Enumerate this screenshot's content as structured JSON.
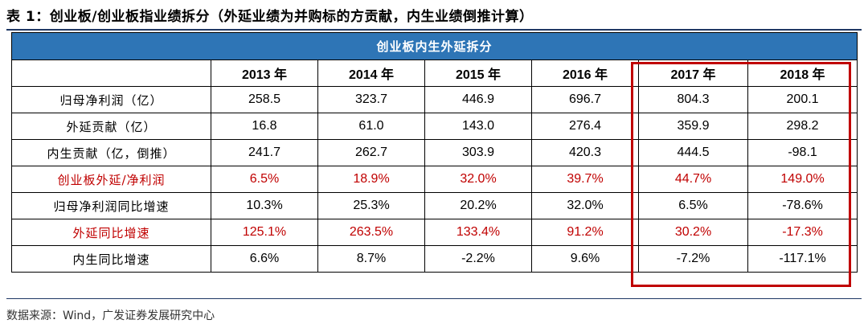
{
  "caption": "表 1：创业板/创业板指业绩拆分（外延业绩为并购标的方贡献，内生业绩倒推计算）",
  "table": {
    "banner": "创业板内生外延拆分",
    "years": [
      "2013 年",
      "2014 年",
      "2015 年",
      "2016 年",
      "2017 年",
      "2018 年"
    ],
    "rows": [
      {
        "label": "归母净利润（亿）",
        "values": [
          "258.5",
          "323.7",
          "446.9",
          "696.7",
          "804.3",
          "200.1"
        ],
        "highlight": false
      },
      {
        "label": "外延贡献（亿）",
        "values": [
          "16.8",
          "61.0",
          "143.0",
          "276.4",
          "359.9",
          "298.2"
        ],
        "highlight": false
      },
      {
        "label": "内生贡献（亿，倒推）",
        "values": [
          "241.7",
          "262.7",
          "303.9",
          "420.3",
          "444.5",
          "-98.1"
        ],
        "highlight": false
      },
      {
        "label": "创业板外延/净利润",
        "values": [
          "6.5%",
          "18.9%",
          "32.0%",
          "39.7%",
          "44.7%",
          "149.0%"
        ],
        "highlight": true
      },
      {
        "label": "归母净利润同比增速",
        "values": [
          "10.3%",
          "25.3%",
          "20.2%",
          "32.0%",
          "6.5%",
          "-78.6%"
        ],
        "highlight": false
      },
      {
        "label": "外延同比增速",
        "values": [
          "125.1%",
          "263.5%",
          "133.4%",
          "91.2%",
          "30.2%",
          "-17.3%"
        ],
        "highlight": true
      },
      {
        "label": "内生同比增速",
        "values": [
          "6.6%",
          "8.7%",
          "-2.2%",
          "9.6%",
          "-7.2%",
          "-117.1%"
        ],
        "highlight": false
      }
    ]
  },
  "source": "数据来源：Wind，广发证券发展研究中心",
  "colors": {
    "banner": "#2e75b6",
    "highlight_text": "#c00000",
    "box": "#c00000"
  }
}
